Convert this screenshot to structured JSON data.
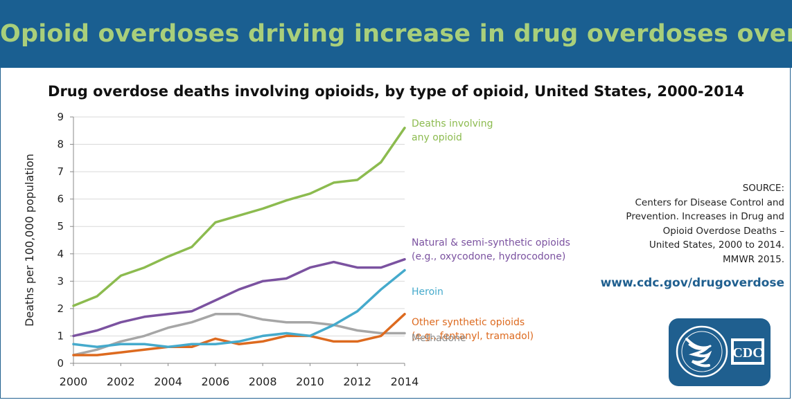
{
  "header": {
    "title": "Opioid overdoses driving increase in drug overdoses overall"
  },
  "source": {
    "label": "SOURCE:",
    "lines": [
      "Centers for Disease Control and",
      "Prevention. Increases in Drug and",
      "Opioid Overdose Deaths –",
      "United States, 2000 to 2014.",
      "MMWR 2015."
    ],
    "url": "www.cdc.gov/drugoverdose"
  },
  "logo": {
    "text": "CDC",
    "icon": "hhs-eagle-logo"
  },
  "chart_data": {
    "type": "line",
    "title": "Drug overdose deaths involving opioids, by type of opioid, United States, 2000-2014",
    "xlabel": "",
    "ylabel": "Deaths per 100,000 population",
    "x": [
      2000,
      2001,
      2002,
      2003,
      2004,
      2005,
      2006,
      2007,
      2008,
      2009,
      2010,
      2011,
      2012,
      2013,
      2014
    ],
    "xticks": [
      2000,
      2002,
      2004,
      2006,
      2008,
      2010,
      2012,
      2014
    ],
    "ylim": [
      0,
      9
    ],
    "yticks": [
      0,
      1,
      2,
      3,
      4,
      5,
      6,
      7,
      8,
      9
    ],
    "grid": true,
    "series": [
      {
        "name": "Deaths involving any opioid",
        "label_lines": [
          "Deaths involving",
          "any opioid"
        ],
        "color": "#8cbb4f",
        "values": [
          2.1,
          2.45,
          3.2,
          3.5,
          3.9,
          4.25,
          5.15,
          5.4,
          5.65,
          5.95,
          6.2,
          6.6,
          6.7,
          7.35,
          8.6
        ]
      },
      {
        "name": "Natural & semi-synthetic opioids (e.g., oxycodone, hydrocodone)",
        "label_lines": [
          "Natural & semi-synthetic opioids",
          "(e.g., oxycodone, hydrocodone)"
        ],
        "color": "#7b52a0",
        "values": [
          1.0,
          1.2,
          1.5,
          1.7,
          1.8,
          1.9,
          2.3,
          2.7,
          3.0,
          3.1,
          3.5,
          3.7,
          3.5,
          3.5,
          3.8
        ]
      },
      {
        "name": "Heroin",
        "label_lines": [
          "Heroin"
        ],
        "color": "#45aacc",
        "values": [
          0.7,
          0.6,
          0.7,
          0.7,
          0.6,
          0.7,
          0.7,
          0.8,
          1.0,
          1.1,
          1.0,
          1.4,
          1.9,
          2.7,
          3.4
        ]
      },
      {
        "name": "Other synthetic opioids (e.g., fentanyl, tramadol)",
        "label_lines": [
          "Other synthetic opioids",
          "(e.g., fentanyl, tramadol)"
        ],
        "color": "#dd6a1f",
        "values": [
          0.3,
          0.3,
          0.4,
          0.5,
          0.6,
          0.6,
          0.9,
          0.7,
          0.8,
          1.0,
          1.0,
          0.8,
          0.8,
          1.0,
          1.8
        ]
      },
      {
        "name": "Methadone",
        "label_lines": [
          "Methadone"
        ],
        "color": "#a6a6a6",
        "values": [
          0.3,
          0.5,
          0.8,
          1.0,
          1.3,
          1.5,
          1.8,
          1.8,
          1.6,
          1.5,
          1.5,
          1.4,
          1.2,
          1.1,
          1.1
        ]
      }
    ]
  }
}
